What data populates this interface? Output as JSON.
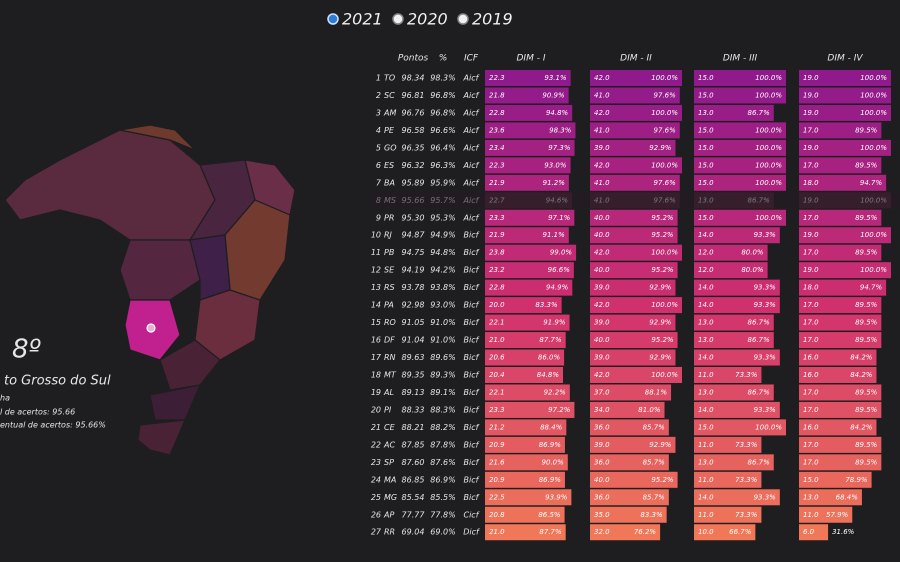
{
  "year_selector": {
    "options": [
      "2021",
      "2020",
      "2019"
    ],
    "selected": 0
  },
  "detail": {
    "rank": "8º",
    "name": "to Grosso do Sul",
    "line3": "ha",
    "line4": "l de acertos: 95.66",
    "line5": "entual de acertos: 95.66%"
  },
  "table": {
    "headers": {
      "points": "Pontos",
      "percent": "%",
      "icf": "ICF",
      "dims": [
        "DIM - I",
        "DIM - II",
        "DIM - III",
        "DIM - IV"
      ]
    },
    "highlighted_row": 7,
    "rows": [
      [
        "1",
        "TO",
        "98.34",
        "98.3%",
        "Aicf",
        "22.3",
        "93.1%",
        "42.0",
        "100.0%",
        "15.0",
        "100.0%",
        "19.0",
        "100.0%"
      ],
      [
        "2",
        "SC",
        "96.81",
        "96.8%",
        "Aicf",
        "21.8",
        "90.9%",
        "41.0",
        "97.6%",
        "15.0",
        "100.0%",
        "19.0",
        "100.0%"
      ],
      [
        "3",
        "AM",
        "96.76",
        "96.8%",
        "Aicf",
        "22.8",
        "94.8%",
        "42.0",
        "100.0%",
        "13.0",
        "86.7%",
        "19.0",
        "100.0%"
      ],
      [
        "4",
        "PE",
        "96.58",
        "96.6%",
        "Aicf",
        "23.6",
        "98.3%",
        "41.0",
        "97.6%",
        "15.0",
        "100.0%",
        "17.0",
        "89.5%"
      ],
      [
        "5",
        "GO",
        "96.35",
        "96.4%",
        "Aicf",
        "23.4",
        "97.3%",
        "39.0",
        "92.9%",
        "15.0",
        "100.0%",
        "19.0",
        "100.0%"
      ],
      [
        "6",
        "ES",
        "96.32",
        "96.3%",
        "Aicf",
        "22.3",
        "93.0%",
        "42.0",
        "100.0%",
        "15.0",
        "100.0%",
        "17.0",
        "89.5%"
      ],
      [
        "7",
        "BA",
        "95.89",
        "95.9%",
        "Aicf",
        "21.9",
        "91.2%",
        "41.0",
        "97.6%",
        "15.0",
        "100.0%",
        "18.0",
        "94.7%"
      ],
      [
        "8",
        "MS",
        "95.66",
        "95.7%",
        "Aicf",
        "22.7",
        "94.6%",
        "41.0",
        "97.6%",
        "13.0",
        "86.7%",
        "19.0",
        "100.0%"
      ],
      [
        "9",
        "PR",
        "95.30",
        "95.3%",
        "Aicf",
        "23.3",
        "97.1%",
        "40.0",
        "95.2%",
        "15.0",
        "100.0%",
        "17.0",
        "89.5%"
      ],
      [
        "10",
        "RJ",
        "94.87",
        "94.9%",
        "Bicf",
        "21.9",
        "91.1%",
        "40.0",
        "95.2%",
        "14.0",
        "93.3%",
        "19.0",
        "100.0%"
      ],
      [
        "11",
        "PB",
        "94.75",
        "94.8%",
        "Bicf",
        "23.8",
        "99.0%",
        "42.0",
        "100.0%",
        "12.0",
        "80.0%",
        "17.0",
        "89.5%"
      ],
      [
        "12",
        "SE",
        "94.19",
        "94.2%",
        "Bicf",
        "23.2",
        "96.6%",
        "40.0",
        "95.2%",
        "12.0",
        "80.0%",
        "19.0",
        "100.0%"
      ],
      [
        "13",
        "RS",
        "93.78",
        "93.8%",
        "Bicf",
        "22.8",
        "94.9%",
        "39.0",
        "92.9%",
        "14.0",
        "93.3%",
        "18.0",
        "94.7%"
      ],
      [
        "14",
        "PA",
        "92.98",
        "93.0%",
        "Bicf",
        "20.0",
        "83.3%",
        "42.0",
        "100.0%",
        "14.0",
        "93.3%",
        "17.0",
        "89.5%"
      ],
      [
        "15",
        "RO",
        "91.05",
        "91.0%",
        "Bicf",
        "22.1",
        "91.9%",
        "39.0",
        "92.9%",
        "13.0",
        "86.7%",
        "17.0",
        "89.5%"
      ],
      [
        "16",
        "DF",
        "91.04",
        "91.0%",
        "Bicf",
        "21.0",
        "87.7%",
        "40.0",
        "95.2%",
        "13.0",
        "86.7%",
        "17.0",
        "89.5%"
      ],
      [
        "17",
        "RN",
        "89.63",
        "89.6%",
        "Bicf",
        "20.6",
        "86.0%",
        "39.0",
        "92.9%",
        "14.0",
        "93.3%",
        "16.0",
        "84.2%"
      ],
      [
        "18",
        "MT",
        "89.35",
        "89.3%",
        "Bicf",
        "20.4",
        "84.8%",
        "42.0",
        "100.0%",
        "11.0",
        "73.3%",
        "16.0",
        "84.2%"
      ],
      [
        "19",
        "AL",
        "89.13",
        "89.1%",
        "Bicf",
        "22.1",
        "92.2%",
        "37.0",
        "88.1%",
        "13.0",
        "86.7%",
        "17.0",
        "89.5%"
      ],
      [
        "20",
        "PI",
        "88.33",
        "88.3%",
        "Bicf",
        "23.3",
        "97.2%",
        "34.0",
        "81.0%",
        "14.0",
        "93.3%",
        "17.0",
        "89.5%"
      ],
      [
        "21",
        "CE",
        "88.21",
        "88.2%",
        "Bicf",
        "21.2",
        "88.4%",
        "36.0",
        "85.7%",
        "15.0",
        "100.0%",
        "16.0",
        "84.2%"
      ],
      [
        "22",
        "AC",
        "87.85",
        "87.8%",
        "Bicf",
        "20.9",
        "86.9%",
        "39.0",
        "92.9%",
        "11.0",
        "73.3%",
        "17.0",
        "89.5%"
      ],
      [
        "23",
        "SP",
        "87.60",
        "87.6%",
        "Bicf",
        "21.6",
        "90.0%",
        "36.0",
        "85.7%",
        "13.0",
        "86.7%",
        "17.0",
        "89.5%"
      ],
      [
        "24",
        "MA",
        "86.85",
        "86.9%",
        "Bicf",
        "20.9",
        "86.9%",
        "40.0",
        "95.2%",
        "11.0",
        "73.3%",
        "15.0",
        "78.9%"
      ],
      [
        "25",
        "MG",
        "85.54",
        "85.5%",
        "Bicf",
        "22.5",
        "93.9%",
        "36.0",
        "85.7%",
        "14.0",
        "93.3%",
        "13.0",
        "68.4%"
      ],
      [
        "26",
        "AP",
        "77.77",
        "77.8%",
        "Cicf",
        "20.8",
        "86.5%",
        "35.0",
        "83.3%",
        "11.0",
        "73.3%",
        "11.0",
        "57.9%"
      ],
      [
        "27",
        "RR",
        "69.04",
        "69.0%",
        "Dicf",
        "21.0",
        "87.7%",
        "32.0",
        "76.2%",
        "10.0",
        "66.7%",
        "6.0",
        "31.6%"
      ]
    ]
  }
}
